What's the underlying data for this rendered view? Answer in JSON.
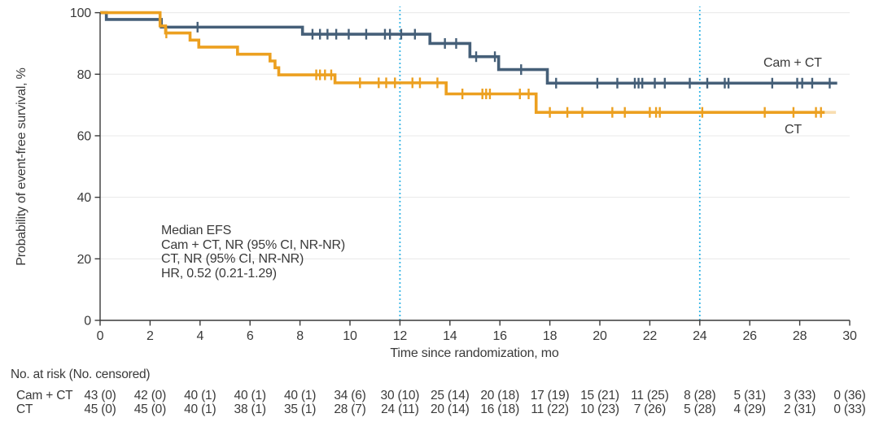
{
  "annotation": {
    "lines": [
      "Median EFS",
      "Cam + CT, NR (95% CI, NR-NR)",
      "CT, NR (95% CI, NR-NR)",
      "HR, 0.52 (0.21-1.29)"
    ]
  },
  "risk_table": {
    "header": "No. at risk (No. censored)",
    "time_points": [
      0,
      2,
      4,
      6,
      8,
      10,
      12,
      14,
      16,
      18,
      20,
      22,
      24,
      26,
      28,
      30
    ],
    "rows": [
      {
        "label": "Cam + CT",
        "values": [
          "43 (0)",
          "42 (0)",
          "40 (1)",
          "40 (1)",
          "40 (1)",
          "34 (6)",
          "30 (10)",
          "25 (14)",
          "20 (18)",
          "17 (19)",
          "15 (21)",
          "11 (25)",
          "8 (28)",
          "5 (31)",
          "3 (33)",
          "0 (36)"
        ]
      },
      {
        "label": "CT",
        "values": [
          "45 (0)",
          "45 (0)",
          "40 (1)",
          "38 (1)",
          "35 (1)",
          "28 (7)",
          "24 (11)",
          "20 (14)",
          "16 (18)",
          "11 (22)",
          "10 (23)",
          "7 (26)",
          "5 (28)",
          "4 (29)",
          "2 (31)",
          "0 (33)"
        ]
      }
    ]
  },
  "chart_data": {
    "type": "line",
    "subtype": "kaplan-meier-step",
    "title": "",
    "xlabel": "Time since randomization, mo",
    "ylabel": "Probability of event-free survival, %",
    "xlim": [
      0,
      30
    ],
    "ylim": [
      0,
      100
    ],
    "xticks": [
      0,
      2,
      4,
      6,
      8,
      10,
      12,
      14,
      16,
      18,
      20,
      22,
      24,
      26,
      28,
      30
    ],
    "yticks": [
      0,
      20,
      40,
      60,
      80,
      100
    ],
    "grid": "horizontal",
    "grid_color": "#e8e8e8",
    "axis_color": "#3a3a3a",
    "reference_lines_x": [
      12,
      24
    ],
    "reference_line_color": "#35b5e5",
    "series": [
      {
        "name": "Cam + CT",
        "color": "#455f78",
        "end_x": 29.5,
        "steps": [
          [
            0,
            100
          ],
          [
            0.25,
            97.8
          ],
          [
            2.45,
            95.3
          ],
          [
            8.1,
            93.0
          ],
          [
            13.2,
            90.0
          ],
          [
            14.8,
            85.7
          ],
          [
            15.95,
            81.5
          ],
          [
            17.9,
            77.1
          ]
        ],
        "censor_marks": [
          [
            3.9,
            95.3
          ],
          [
            8.5,
            93
          ],
          [
            8.8,
            93
          ],
          [
            9.1,
            93
          ],
          [
            9.45,
            93
          ],
          [
            9.95,
            93
          ],
          [
            10.65,
            93
          ],
          [
            11.4,
            93
          ],
          [
            11.6,
            93
          ],
          [
            12.05,
            93
          ],
          [
            12.6,
            93
          ],
          [
            13.8,
            90
          ],
          [
            14.25,
            90
          ],
          [
            15.05,
            85.7
          ],
          [
            15.8,
            85.7
          ],
          [
            16.85,
            81.5
          ],
          [
            18.25,
            77.1
          ],
          [
            19.9,
            77.1
          ],
          [
            20.7,
            77.1
          ],
          [
            21.4,
            77.1
          ],
          [
            21.55,
            77.1
          ],
          [
            21.7,
            77.1
          ],
          [
            22.2,
            77.1
          ],
          [
            22.6,
            77.1
          ],
          [
            23.6,
            77.1
          ],
          [
            24.3,
            77.1
          ],
          [
            25.0,
            77.1
          ],
          [
            25.15,
            77.1
          ],
          [
            26.9,
            77.1
          ],
          [
            27.9,
            77.1
          ],
          [
            28.1,
            77.1
          ],
          [
            28.5,
            77.1
          ],
          [
            29.2,
            77.1
          ]
        ]
      },
      {
        "name": "CT",
        "color": "#eca020",
        "end_x": 29.0,
        "faded_end_x": 29.45,
        "steps": [
          [
            0,
            100
          ],
          [
            2.4,
            95.7
          ],
          [
            2.62,
            93.4
          ],
          [
            3.6,
            91.1
          ],
          [
            3.95,
            88.8
          ],
          [
            5.5,
            86.5
          ],
          [
            6.8,
            84.3
          ],
          [
            7.0,
            82.1
          ],
          [
            7.15,
            79.8
          ],
          [
            9.4,
            77.2
          ],
          [
            13.85,
            73.6
          ],
          [
            17.45,
            67.6
          ]
        ],
        "censor_marks": [
          [
            2.65,
            93.4
          ],
          [
            8.65,
            79.8
          ],
          [
            8.8,
            79.8
          ],
          [
            9.0,
            79.8
          ],
          [
            9.25,
            79.8
          ],
          [
            10.4,
            77.2
          ],
          [
            11.15,
            77.2
          ],
          [
            11.45,
            77.2
          ],
          [
            11.8,
            77.2
          ],
          [
            12.5,
            77.2
          ],
          [
            12.8,
            77.2
          ],
          [
            13.5,
            77.2
          ],
          [
            14.5,
            73.6
          ],
          [
            15.3,
            73.6
          ],
          [
            15.45,
            73.6
          ],
          [
            15.6,
            73.6
          ],
          [
            16.8,
            73.6
          ],
          [
            17.15,
            73.6
          ],
          [
            18.0,
            67.6
          ],
          [
            18.7,
            67.6
          ],
          [
            19.3,
            67.6
          ],
          [
            20.5,
            67.6
          ],
          [
            21.0,
            67.6
          ],
          [
            22.0,
            67.6
          ],
          [
            22.25,
            67.6
          ],
          [
            22.4,
            67.6
          ],
          [
            24.1,
            67.6
          ],
          [
            26.6,
            67.6
          ],
          [
            27.75,
            67.6
          ],
          [
            28.65,
            67.6
          ],
          [
            28.85,
            67.6
          ]
        ]
      }
    ]
  }
}
